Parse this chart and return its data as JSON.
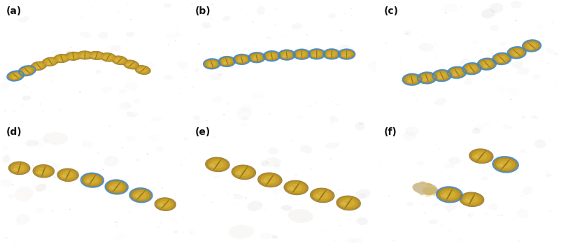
{
  "layout": {
    "rows": 2,
    "cols": 3,
    "figsize": [
      8.09,
      3.49
    ],
    "dpi": 100
  },
  "panels": [
    {
      "label": "(a)",
      "bg_color": "#e8e4dc",
      "bg_color2": "#ddd8ce"
    },
    {
      "label": "(b)",
      "bg_color": "#e5e2da",
      "bg_color2": "#d8d4cc"
    },
    {
      "label": "(c)",
      "bg_color": "#e2dfd8",
      "bg_color2": "#d5d2cc"
    },
    {
      "label": "(d)",
      "bg_color": "#e0ddd6",
      "bg_color2": "#d4d0c8"
    },
    {
      "label": "(e)",
      "bg_color": "#e2dfd8",
      "bg_color2": "#d5d2ca"
    },
    {
      "label": "(f)",
      "bg_color": "#e5e2da",
      "bg_color2": "#d8d5cd"
    }
  ],
  "border_color": "#999999",
  "label_fontsize": 10,
  "label_fontweight": "bold",
  "label_color": "#111111",
  "background_overall": "#ffffff",
  "cell_colors": {
    "outer": "#6b4e10",
    "mid": "#9a7518",
    "main": "#b89020",
    "light": "#d4aa30",
    "highlight": "#e8c840",
    "pale": "#c8a838"
  },
  "blue_outline": "#3a88cc"
}
